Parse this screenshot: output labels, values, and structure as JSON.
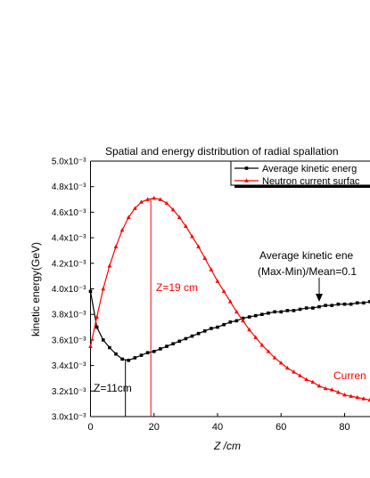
{
  "chart_data": {
    "type": "line",
    "title": "Spatial and energy distribution of radial spallation",
    "xlabel": "Z /cm",
    "ylabel": "kinetic energy(GeV)",
    "x": [
      0,
      2,
      4,
      6,
      8,
      10,
      12,
      14,
      16,
      18,
      20,
      22,
      24,
      26,
      28,
      30,
      32,
      34,
      36,
      38,
      40,
      42,
      44,
      46,
      48,
      50,
      52,
      54,
      56,
      58,
      60,
      62,
      64,
      66,
      68,
      70,
      72,
      74,
      76,
      78,
      80,
      82,
      84,
      86,
      88
    ],
    "series": [
      {
        "name": "Average kinetic energ",
        "color": "#000000",
        "marker": "square",
        "values": [
          0.00398,
          0.0037,
          0.0036,
          0.00354,
          0.00349,
          0.00345,
          0.00344,
          0.00346,
          0.00348,
          0.0035,
          0.00351,
          0.00353,
          0.00355,
          0.00357,
          0.00359,
          0.00361,
          0.00363,
          0.00365,
          0.00367,
          0.00369,
          0.0037,
          0.00372,
          0.00374,
          0.00375,
          0.00377,
          0.00378,
          0.00379,
          0.0038,
          0.00381,
          0.00382,
          0.00382,
          0.00383,
          0.00383,
          0.00384,
          0.00385,
          0.00385,
          0.00386,
          0.00387,
          0.00387,
          0.00388,
          0.00388,
          0.00388,
          0.00389,
          0.00389,
          0.0039
        ]
      },
      {
        "name": "Neutron current surfac",
        "color": "#ff0000",
        "marker": "triangle",
        "values": [
          0.00355,
          0.00378,
          0.004,
          0.00418,
          0.00433,
          0.00446,
          0.00456,
          0.00463,
          0.00468,
          0.0047,
          0.00471,
          0.0047,
          0.00467,
          0.00462,
          0.00456,
          0.00449,
          0.00441,
          0.00433,
          0.00424,
          0.00415,
          0.00406,
          0.00398,
          0.0039,
          0.00382,
          0.00375,
          0.00368,
          0.00362,
          0.00356,
          0.00351,
          0.00346,
          0.00342,
          0.00338,
          0.00335,
          0.00332,
          0.00329,
          0.00327,
          0.00324,
          0.00322,
          0.00321,
          0.00319,
          0.00317,
          0.00316,
          0.00315,
          0.00314,
          0.00313
        ]
      }
    ],
    "xlim": [
      0,
      88
    ],
    "xticks": [
      0,
      20,
      40,
      60,
      80
    ],
    "ylim": [
      0.003,
      0.005
    ],
    "yticks": [
      {
        "value": 0.003,
        "label": "3.0x10⁻³"
      },
      {
        "value": 0.0032,
        "label": "3.2x10⁻³"
      },
      {
        "value": 0.0034,
        "label": "3.4x10⁻³"
      },
      {
        "value": 0.0036,
        "label": "3.6x10⁻³"
      },
      {
        "value": 0.0038,
        "label": "3.8x10⁻³"
      },
      {
        "value": 0.004,
        "label": "4.0x10⁻³"
      },
      {
        "value": 0.0042,
        "label": "4.2x10⁻³"
      },
      {
        "value": 0.0044,
        "label": "4.4x10⁻³"
      },
      {
        "value": 0.0046,
        "label": "4.6x10⁻³"
      },
      {
        "value": 0.0048,
        "label": "4.8x10⁻³"
      },
      {
        "value": 0.005,
        "label": "5.0x10⁻³"
      }
    ],
    "annotations": [
      {
        "text": "Z=19 cm",
        "x": 19,
        "series": 1,
        "color": "#ff0000"
      },
      {
        "text": "Z=11cm",
        "x": 11,
        "series": 0,
        "color": "#000000"
      },
      {
        "text": "Average kinetic ene"
      },
      {
        "text": "(Max-Min)/Mean=0.1"
      },
      {
        "text": "Curren",
        "color": "#ff0000"
      }
    ]
  }
}
